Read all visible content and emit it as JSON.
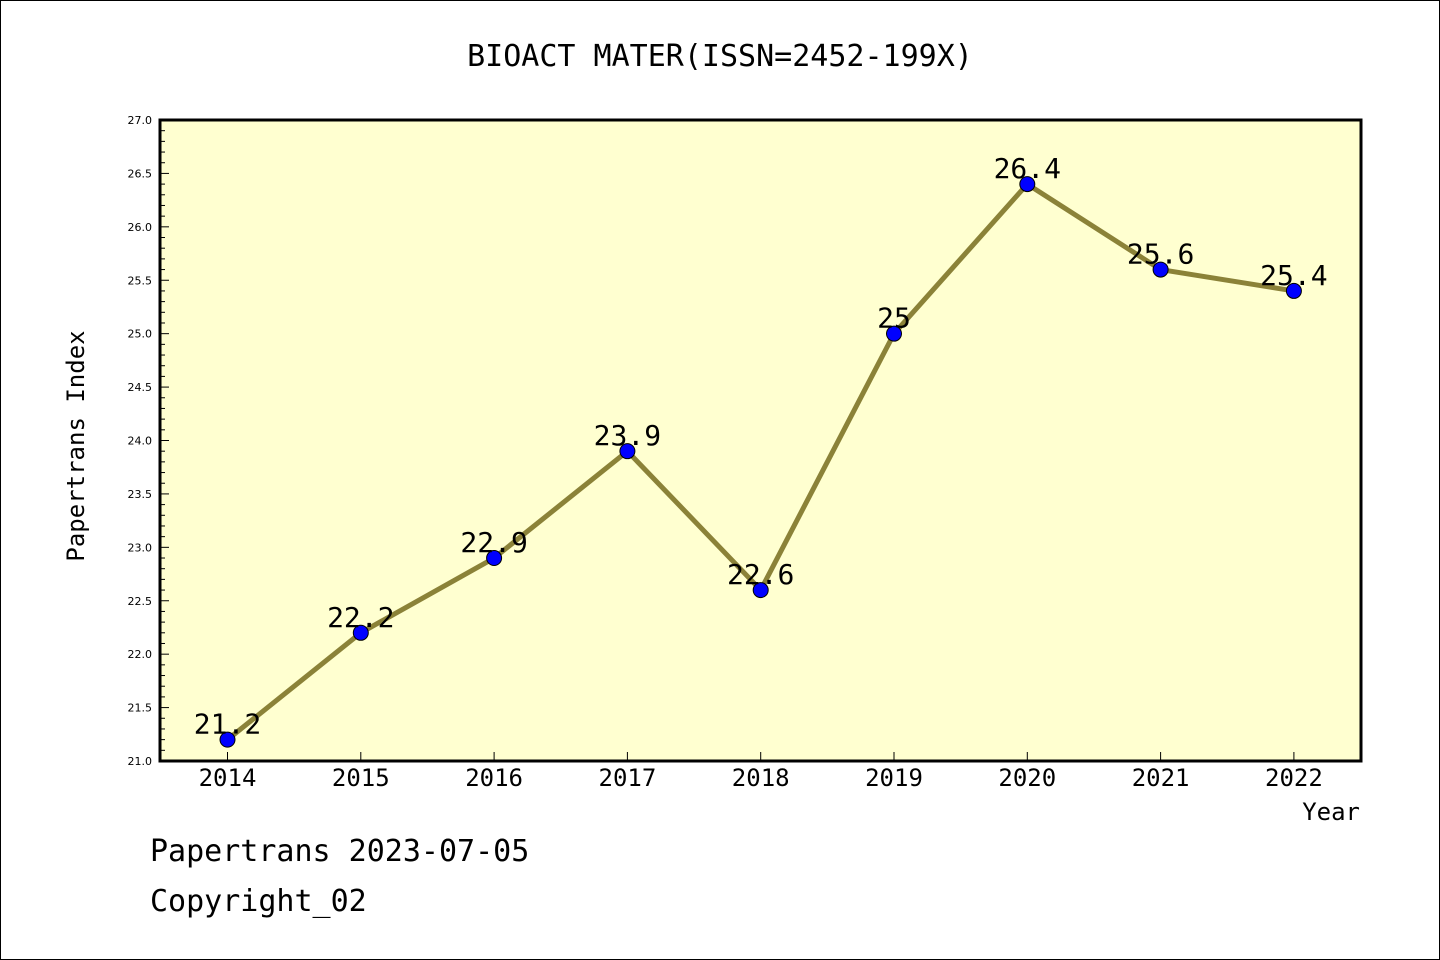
{
  "chart_data": {
    "type": "line",
    "title": "BIOACT MATER(ISSN=2452-199X)",
    "xlabel": "Year",
    "ylabel": "Papertrans Index",
    "categories": [
      "2014",
      "2015",
      "2016",
      "2017",
      "2018",
      "2019",
      "2020",
      "2021",
      "2022"
    ],
    "values": [
      21.2,
      22.2,
      22.9,
      23.9,
      22.6,
      25,
      26.4,
      25.6,
      25.4
    ],
    "data_labels": [
      "21.2",
      "22.2",
      "22.9",
      "23.9",
      "22.6",
      "25",
      "26.4",
      "25.6",
      "25.4"
    ],
    "ylim": [
      21.0,
      27.0
    ],
    "yticks": [
      "21.0",
      "21.5",
      "22.0",
      "22.5",
      "23.0",
      "23.5",
      "24.0",
      "24.5",
      "25.0",
      "25.5",
      "26.0",
      "26.5",
      "27.0"
    ],
    "grid": false,
    "legend": "none",
    "colors": {
      "plot_background": "#ffffd0",
      "line": "#8b8238",
      "marker": "#0000ff"
    }
  },
  "footer": {
    "line1": "Papertrans 2023-07-05",
    "line2": "Copyright_02"
  }
}
